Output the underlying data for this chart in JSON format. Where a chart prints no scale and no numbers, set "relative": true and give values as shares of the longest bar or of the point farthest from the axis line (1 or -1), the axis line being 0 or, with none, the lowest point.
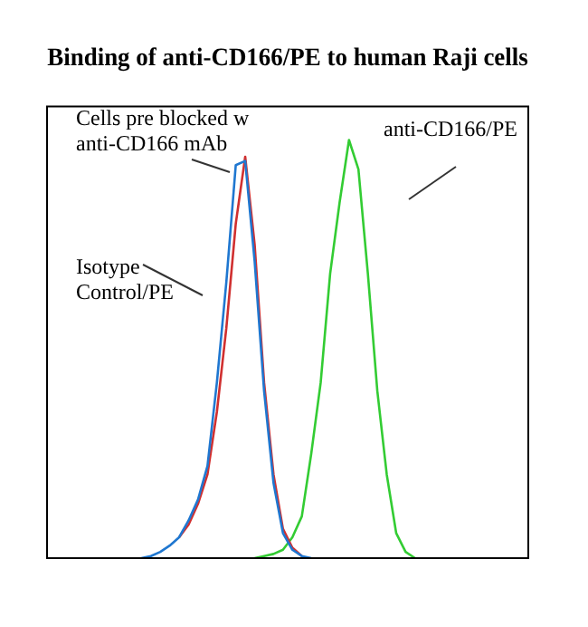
{
  "chart_data": {
    "type": "line",
    "title": "Binding of anti-CD166/PE to human Raji cells",
    "relative": true,
    "categories": [
      null,
      null,
      null,
      null,
      null,
      null,
      null,
      null,
      null,
      null,
      null,
      null,
      null,
      null,
      null,
      null,
      null,
      null,
      null,
      null,
      null,
      null,
      null,
      null,
      null,
      null,
      null,
      null,
      null,
      null,
      null,
      null,
      null,
      null,
      null,
      null,
      null,
      null,
      null,
      null,
      null,
      null,
      null,
      null,
      null,
      null,
      null,
      null,
      null,
      null,
      null,
      null
    ],
    "series": [
      {
        "name": "Cells pre blocked w anti-CD166 mAb",
        "color": "#1f77d0",
        "values": [
          null,
          null,
          null,
          null,
          null,
          null,
          null,
          null,
          null,
          null,
          0,
          0.005,
          0.015,
          0.03,
          0.05,
          0.09,
          0.14,
          0.22,
          0.42,
          0.66,
          0.94,
          0.95,
          0.71,
          0.4,
          0.18,
          0.06,
          0.02,
          0.005,
          0,
          null,
          null,
          null,
          null,
          null,
          null,
          null,
          null,
          null,
          null,
          null,
          null,
          null,
          null,
          null,
          null,
          null,
          null,
          null,
          null,
          null,
          null,
          null
        ]
      },
      {
        "name": "Isotype Control/PE",
        "color": "#d03030",
        "values": [
          null,
          null,
          null,
          null,
          null,
          null,
          null,
          null,
          null,
          null,
          null,
          null,
          null,
          null,
          0.05,
          0.08,
          0.13,
          0.2,
          0.35,
          0.55,
          0.8,
          0.96,
          0.75,
          0.42,
          0.2,
          0.07,
          0.025,
          0.005,
          null,
          null,
          null,
          null,
          null,
          null,
          null,
          null,
          null,
          null,
          null,
          null,
          null,
          null,
          null,
          null,
          null,
          null,
          null,
          null,
          null,
          null,
          null,
          null
        ]
      },
      {
        "name": "anti-CD166/PE",
        "color": "#33cc33",
        "values": [
          null,
          null,
          null,
          null,
          null,
          null,
          null,
          null,
          null,
          null,
          null,
          null,
          null,
          null,
          null,
          null,
          null,
          null,
          null,
          null,
          null,
          null,
          0,
          0.005,
          0.01,
          0.02,
          0.05,
          0.1,
          0.25,
          0.42,
          0.68,
          0.85,
          1,
          0.93,
          0.68,
          0.4,
          0.2,
          0.06,
          0.015,
          0,
          null,
          null,
          null,
          null,
          null,
          null,
          null,
          null,
          null,
          null,
          null,
          null
        ]
      }
    ]
  }
}
